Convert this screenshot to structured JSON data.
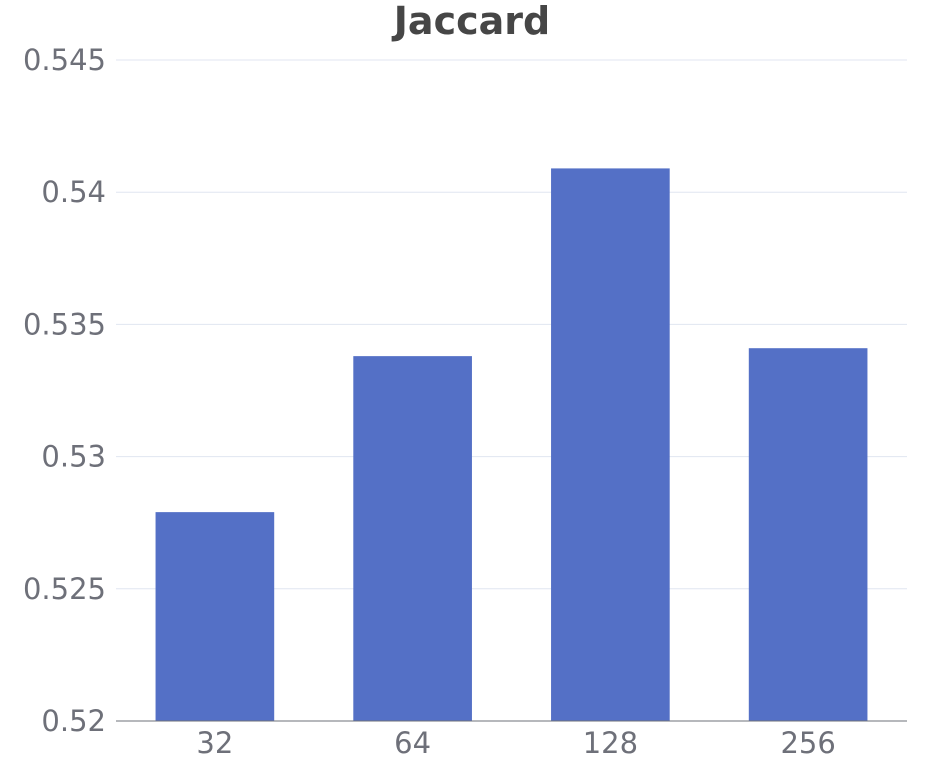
{
  "chart_data": {
    "type": "bar",
    "title": "Jaccard",
    "categories": [
      "32",
      "64",
      "128",
      "256"
    ],
    "values": [
      0.5279,
      0.5338,
      0.5409,
      0.5341
    ],
    "ylim": [
      0.52,
      0.545
    ],
    "yticks": [
      0.52,
      0.525,
      0.53,
      0.535,
      0.54,
      0.545
    ],
    "ytick_labels": [
      "0.52",
      "0.525",
      "0.53",
      "0.535",
      "0.54",
      "0.545"
    ],
    "xlabel": "",
    "ylabel": "",
    "grid": true,
    "bar_color": "#5470c6",
    "axis_color": "#6e7079",
    "grid_color": "#e0e6f1",
    "title_color": "#464646"
  }
}
